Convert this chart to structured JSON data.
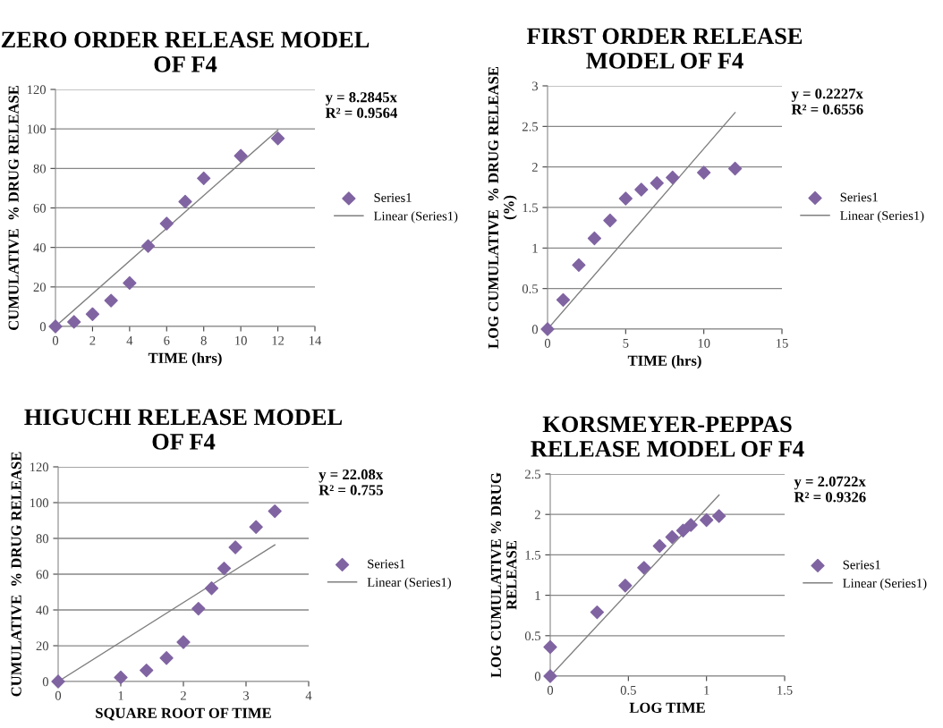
{
  "chart_data": [
    {
      "type": "scatter",
      "title": "ZERO ORDER RELEASE MODEL\nOF F4",
      "xlabel": "TIME (hrs)",
      "ylabel": "CUMULATIVE  % DRUG RELEASE",
      "annotations": [
        "y = 8.2845x\nR² = 0.9564"
      ],
      "xlim": [
        0,
        14
      ],
      "ylim": [
        0,
        120
      ],
      "xticks": [
        0,
        2,
        4,
        6,
        8,
        10,
        12,
        14
      ],
      "yticks": [
        0,
        20,
        40,
        60,
        80,
        100,
        120
      ],
      "grid": "y",
      "legend": "right",
      "series": [
        {
          "name": "Series1",
          "marker": "diamond",
          "color": "#8064a2",
          "x": [
            0,
            1,
            2,
            3,
            4,
            5,
            6,
            7,
            8,
            10,
            12
          ],
          "values": [
            0,
            2.3,
            6.2,
            13.1,
            22,
            40.7,
            52.1,
            63.2,
            75,
            86.4,
            95.2
          ]
        },
        {
          "name": "Linear (Series1)",
          "type": "line",
          "marker": "none",
          "line_style": "solid",
          "color": "#7f7f7f",
          "x": [
            0,
            12
          ],
          "values": [
            0,
            99.4
          ]
        }
      ]
    },
    {
      "type": "scatter",
      "title": "FIRST ORDER RELEASE\nMODEL OF F4",
      "xlabel": "TIME (hrs)",
      "ylabel": "LOG CUMULATIVE  % DRUG RELEASE\n(%)",
      "annotations": [
        "y = 0.2227x\nR² = 0.6556"
      ],
      "xlim": [
        0,
        15
      ],
      "ylim": [
        0,
        3
      ],
      "xticks": [
        0,
        5,
        10,
        15
      ],
      "yticks": [
        0,
        0.5,
        1,
        1.5,
        2,
        2.5,
        3
      ],
      "grid": "y",
      "legend": "right",
      "series": [
        {
          "name": "Series1",
          "marker": "diamond",
          "color": "#8064a2",
          "x": [
            0,
            1,
            2,
            3,
            4,
            5,
            6,
            7,
            8,
            10,
            12
          ],
          "values": [
            0,
            0.36,
            0.79,
            1.12,
            1.34,
            1.61,
            1.72,
            1.8,
            1.87,
            1.93,
            1.98
          ]
        },
        {
          "name": "Linear (Series1)",
          "type": "line",
          "marker": "none",
          "line_style": "solid",
          "color": "#7f7f7f",
          "x": [
            0,
            12
          ],
          "values": [
            0,
            2.67
          ]
        }
      ]
    },
    {
      "type": "scatter",
      "title": "HIGUCHI RELEASE MODEL\nOF F4",
      "xlabel": "SQUARE ROOT OF TIME",
      "ylabel": "CUMULATIVE  % DRUG RELEASE",
      "annotations": [
        "y = 22.08x\nR² = 0.755"
      ],
      "xlim": [
        0,
        4
      ],
      "ylim": [
        0,
        120
      ],
      "xticks": [
        0,
        1,
        2,
        3,
        4
      ],
      "yticks": [
        0,
        20,
        40,
        60,
        80,
        100,
        120
      ],
      "grid": "y",
      "legend": "right",
      "series": [
        {
          "name": "Series1",
          "marker": "diamond",
          "color": "#8064a2",
          "x": [
            0,
            1,
            1.41,
            1.73,
            2,
            2.24,
            2.45,
            2.65,
            2.83,
            3.16,
            3.46
          ],
          "values": [
            0,
            2.3,
            6.2,
            13.1,
            22,
            40.7,
            52.1,
            63.2,
            75,
            86.4,
            95.2
          ]
        },
        {
          "name": "Linear (Series1)",
          "type": "line",
          "marker": "none",
          "line_style": "solid",
          "color": "#7f7f7f",
          "x": [
            0,
            3.46
          ],
          "values": [
            0,
            76.4
          ]
        }
      ]
    },
    {
      "type": "scatter",
      "title": "KORSMEYER-PEPPAS\nRELEASE MODEL OF F4",
      "xlabel": "LOG TIME",
      "ylabel": "LOG CUMULATIVE % DRUG\nRELEASE",
      "annotations": [
        "y = 2.0722x\nR² = 0.9326"
      ],
      "xlim": [
        0,
        1.5
      ],
      "ylim": [
        0,
        2.5
      ],
      "xticks": [
        0,
        0.5,
        1,
        1.5
      ],
      "yticks": [
        0,
        0.5,
        1,
        1.5,
        2,
        2.5
      ],
      "grid": "y",
      "legend": "right",
      "series": [
        {
          "name": "Series1",
          "marker": "diamond",
          "color": "#8064a2",
          "x": [
            0,
            0,
            0.3,
            0.48,
            0.6,
            0.7,
            0.78,
            0.85,
            0.9,
            1,
            1.08
          ],
          "values": [
            0,
            0.36,
            0.79,
            1.12,
            1.34,
            1.61,
            1.72,
            1.8,
            1.87,
            1.93,
            1.98
          ]
        },
        {
          "name": "Linear (Series1)",
          "type": "line",
          "marker": "none",
          "line_style": "solid",
          "color": "#7f7f7f",
          "x": [
            0,
            1.08
          ],
          "values": [
            0,
            2.24
          ]
        }
      ]
    }
  ]
}
